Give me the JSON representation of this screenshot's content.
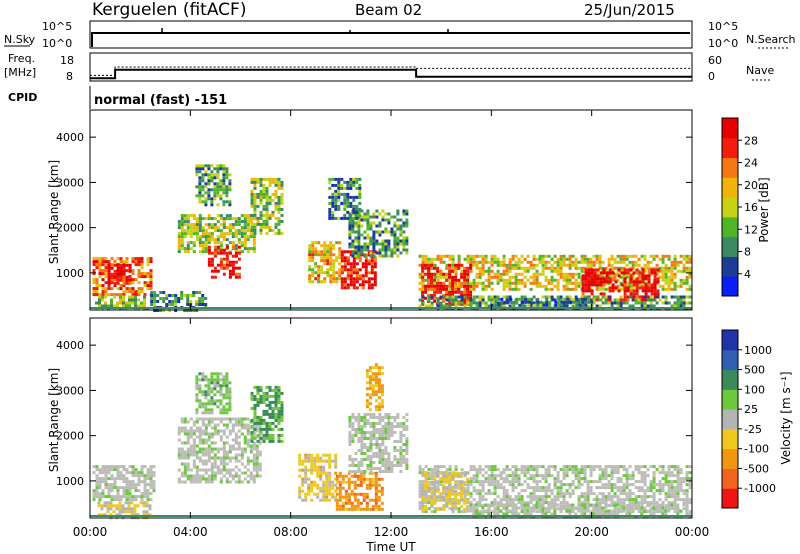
{
  "header": {
    "site": "Kerguelen (fitACF)",
    "beam": "Beam 02",
    "date": "25/Jun/2015"
  },
  "status": {
    "nsky_label": "N.Sky",
    "nsky_ticks": [
      "10^5",
      "10^0"
    ],
    "nsearch_label": "N.Search",
    "nsearch_ticks": [
      "10^5",
      "10^0"
    ],
    "freq_label_1": "Freq.",
    "freq_label_2": "[MHz]",
    "freq_ticks": [
      "18",
      "8"
    ],
    "nave_label": "Nave",
    "nave_ticks": [
      "60",
      "0"
    ],
    "cpid_label": "CPID",
    "cpid_text": "normal (fast) -151"
  },
  "colors": {
    "power": [
      "#0a1ff5",
      "#1e3c96",
      "#3c8a64",
      "#50b428",
      "#c8d214",
      "#f0b40a",
      "#f57814",
      "#f01e0a",
      "#e60000"
    ],
    "velocity": [
      "#2233aa",
      "#2e5fb0",
      "#3a8a5a",
      "#6cc83c",
      "#b4b4b4",
      "#f0c81e",
      "#f09610",
      "#f0641e",
      "#f01414"
    ],
    "grey": "#bdbdb8"
  },
  "chart_data": [
    {
      "type": "heatmap",
      "title": "Power",
      "xlabel": "Time UT",
      "ylabel": "Slant Range [km]",
      "xlim": [
        0,
        24
      ],
      "ylim": [
        180,
        4600
      ],
      "x_ticks": [
        "00:00",
        "04:00",
        "08:00",
        "12:00",
        "16:00",
        "20:00",
        "00:00"
      ],
      "y_ticks": [
        1000,
        2000,
        3000,
        4000
      ],
      "colorbar_label": "Power [dB]",
      "colorbar_ticks": [
        "4",
        "8",
        "12",
        "16",
        "20",
        "24",
        "28"
      ],
      "colorbar_range": [
        0,
        30
      ],
      "echo_regions": [
        {
          "t0": 0.1,
          "t1": 2.4,
          "r0": 550,
          "r1": 1350,
          "power": 22
        },
        {
          "t0": 0.7,
          "t1": 1.6,
          "r0": 800,
          "r1": 1200,
          "power": 29
        },
        {
          "t0": 0.2,
          "t1": 2.3,
          "r0": 200,
          "r1": 500,
          "power": 12
        },
        {
          "t0": 2.4,
          "t1": 4.6,
          "r0": 200,
          "r1": 600,
          "power": 9
        },
        {
          "t0": 3.5,
          "t1": 6.6,
          "r0": 1500,
          "r1": 2300,
          "power": 14
        },
        {
          "t0": 4.7,
          "t1": 6.0,
          "r0": 900,
          "r1": 1600,
          "power": 27
        },
        {
          "t0": 4.2,
          "t1": 5.6,
          "r0": 2500,
          "r1": 3400,
          "power": 10
        },
        {
          "t0": 6.4,
          "t1": 7.6,
          "r0": 1900,
          "r1": 3100,
          "power": 13
        },
        {
          "t0": 8.7,
          "t1": 10.0,
          "r0": 800,
          "r1": 1700,
          "power": 18
        },
        {
          "t0": 10.0,
          "t1": 11.4,
          "r0": 700,
          "r1": 1500,
          "power": 27
        },
        {
          "t0": 10.3,
          "t1": 12.6,
          "r0": 1400,
          "r1": 2400,
          "power": 10
        },
        {
          "t0": 9.5,
          "t1": 10.8,
          "r0": 2200,
          "r1": 3100,
          "power": 8
        },
        {
          "t0": 13.1,
          "t1": 23.9,
          "r0": 650,
          "r1": 1400,
          "power": 17
        },
        {
          "t0": 13.2,
          "t1": 15.2,
          "r0": 300,
          "r1": 1200,
          "power": 27
        },
        {
          "t0": 19.6,
          "t1": 22.6,
          "r0": 400,
          "r1": 1100,
          "power": 28
        },
        {
          "t0": 13.1,
          "t1": 23.9,
          "r0": 200,
          "r1": 500,
          "power": 10
        },
        {
          "t0": 16.0,
          "t1": 20.0,
          "r0": 200,
          "r1": 450,
          "power": 8
        }
      ]
    },
    {
      "type": "heatmap",
      "title": "Velocity",
      "xlabel": "Time UT",
      "ylabel": "Slant Range [km]",
      "xlim": [
        0,
        24
      ],
      "ylim": [
        180,
        4600
      ],
      "x_ticks": [
        "00:00",
        "04:00",
        "08:00",
        "12:00",
        "16:00",
        "20:00",
        "00:00"
      ],
      "y_ticks": [
        1000,
        2000,
        3000,
        4000
      ],
      "colorbar_label": "Velocity [m s⁻¹]",
      "colorbar_ticks": [
        "1000",
        "500",
        "100",
        "25",
        "-25",
        "-100",
        "-500",
        "-1000"
      ],
      "colorbar_range": [
        -1000,
        1000
      ],
      "echo_regions": [
        {
          "t0": 0.1,
          "t1": 2.6,
          "r0": 600,
          "r1": 1350,
          "velocity": 0
        },
        {
          "t0": 0.3,
          "t1": 2.4,
          "r0": 200,
          "r1": 550,
          "velocity": -150
        },
        {
          "t0": 3.5,
          "t1": 6.8,
          "r0": 1000,
          "r1": 2400,
          "velocity": 0
        },
        {
          "t0": 4.2,
          "t1": 5.6,
          "r0": 2500,
          "r1": 3400,
          "velocity": 200
        },
        {
          "t0": 6.4,
          "t1": 7.6,
          "r0": 1900,
          "r1": 3100,
          "velocity": 400
        },
        {
          "t0": 8.3,
          "t1": 9.8,
          "r0": 600,
          "r1": 1600,
          "velocity": -200
        },
        {
          "t0": 9.8,
          "t1": 11.6,
          "r0": 400,
          "r1": 1200,
          "velocity": -500
        },
        {
          "t0": 10.3,
          "t1": 12.6,
          "r0": 1200,
          "r1": 2500,
          "velocity": 0
        },
        {
          "t0": 11.0,
          "t1": 11.6,
          "r0": 2600,
          "r1": 3600,
          "velocity": -400
        },
        {
          "t0": 13.1,
          "t1": 23.9,
          "r0": 300,
          "r1": 1350,
          "velocity": 0
        },
        {
          "t0": 13.2,
          "t1": 15.0,
          "r0": 350,
          "r1": 1200,
          "velocity": -150
        },
        {
          "t0": 15.0,
          "t1": 23.9,
          "r0": 200,
          "r1": 500,
          "velocity": 60
        }
      ]
    },
    {
      "type": "line",
      "title": "Freq. [MHz]",
      "ylim": [
        8,
        18
      ],
      "x": [
        0,
        1.0,
        1.0,
        13.0,
        13.0,
        24
      ],
      "y": [
        9,
        9,
        12,
        12,
        9.5,
        9.5
      ],
      "nave_x": [
        0,
        1.0,
        1.0,
        13.0,
        13.0,
        24
      ],
      "nave_y": [
        10,
        10,
        13,
        13,
        12.5,
        12.5
      ]
    }
  ]
}
